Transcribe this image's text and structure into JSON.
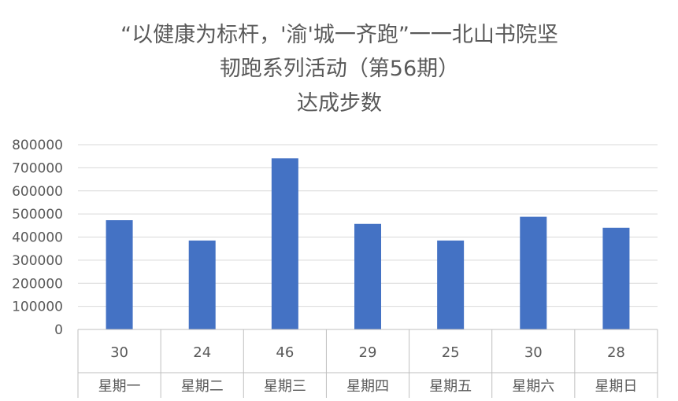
{
  "chart_data": {
    "type": "bar",
    "title_lines": [
      "“以健康为标杆，'渝'城一齐跑”一一北山书院坚",
      "韧跑系列活动（第56期）",
      "达成步数"
    ],
    "categories": [
      "星期一",
      "星期二",
      "星期三",
      "星期四",
      "星期五",
      "星期六",
      "星期日"
    ],
    "participants": [
      "30",
      "24",
      "46",
      "29",
      "25",
      "30",
      "28"
    ],
    "values": [
      473000,
      385000,
      741000,
      457000,
      385000,
      488000,
      440000
    ],
    "ylim": [
      0,
      800000
    ],
    "yticks": [
      "0",
      "100000",
      "200000",
      "300000",
      "400000",
      "500000",
      "600000",
      "700000",
      "800000"
    ],
    "grid": true,
    "legend": "none",
    "bar_color": "#4472C4"
  }
}
